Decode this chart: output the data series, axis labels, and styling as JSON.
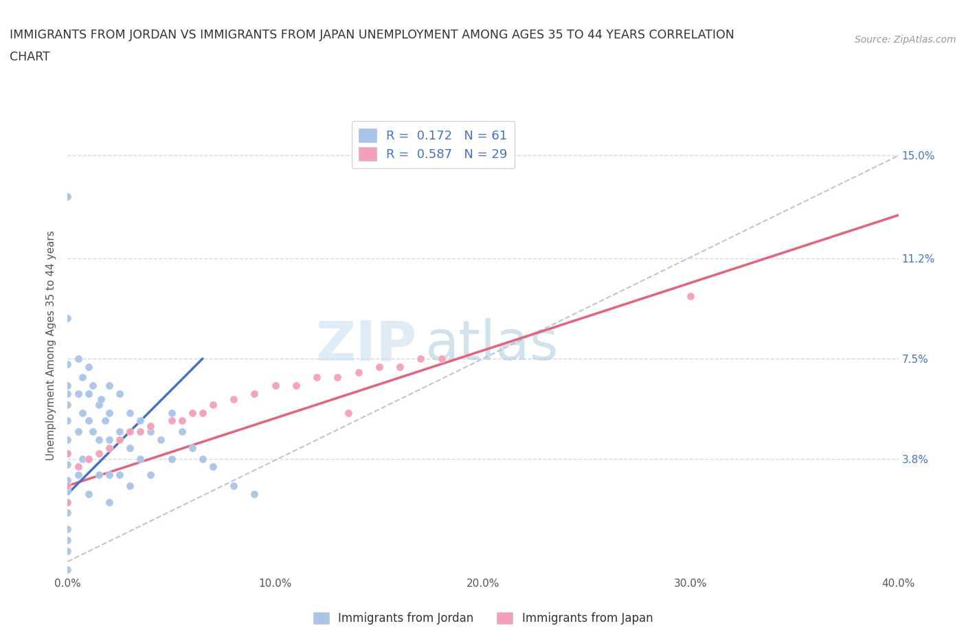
{
  "title_line1": "IMMIGRANTS FROM JORDAN VS IMMIGRANTS FROM JAPAN UNEMPLOYMENT AMONG AGES 35 TO 44 YEARS CORRELATION",
  "title_line2": "CHART",
  "source": "Source: ZipAtlas.com",
  "ylabel": "Unemployment Among Ages 35 to 44 years",
  "xlim": [
    0.0,
    0.4
  ],
  "ylim": [
    -0.005,
    0.165
  ],
  "xticks": [
    0.0,
    0.1,
    0.2,
    0.3,
    0.4
  ],
  "xticklabels": [
    "0.0%",
    "10.0%",
    "20.0%",
    "30.0%",
    "40.0%"
  ],
  "yticks": [
    0.0,
    0.038,
    0.075,
    0.112,
    0.15
  ],
  "yticklabels": [
    "",
    "3.8%",
    "7.5%",
    "11.2%",
    "15.0%"
  ],
  "jordan_color": "#a8c4e8",
  "japan_color": "#f5a0b8",
  "jordan_line_color": "#4472c4",
  "japan_line_color": "#e8607a",
  "grid_color": "#d0d8e8",
  "ref_line_color": "#b8c8d8",
  "R_jordan": 0.172,
  "N_jordan": 61,
  "R_japan": 0.587,
  "N_japan": 29,
  "watermark_zip": "ZIP",
  "watermark_atlas": "atlas",
  "jordan_x": [
    0.0,
    0.0,
    0.0,
    0.0,
    0.0,
    0.0,
    0.0,
    0.0,
    0.0,
    0.0,
    0.0,
    0.0,
    0.0,
    0.0,
    0.0,
    0.0,
    0.0,
    0.0,
    0.005,
    0.005,
    0.005,
    0.005,
    0.007,
    0.007,
    0.007,
    0.01,
    0.01,
    0.01,
    0.01,
    0.01,
    0.012,
    0.012,
    0.015,
    0.015,
    0.015,
    0.016,
    0.018,
    0.02,
    0.02,
    0.02,
    0.02,
    0.02,
    0.025,
    0.025,
    0.025,
    0.03,
    0.03,
    0.03,
    0.035,
    0.035,
    0.04,
    0.04,
    0.045,
    0.05,
    0.05,
    0.055,
    0.06,
    0.065,
    0.07,
    0.08,
    0.09
  ],
  "jordan_y": [
    0.135,
    0.09,
    0.073,
    0.065,
    0.062,
    0.058,
    0.052,
    0.045,
    0.04,
    0.036,
    0.03,
    0.026,
    0.022,
    0.018,
    0.012,
    0.008,
    0.004,
    -0.003,
    0.075,
    0.062,
    0.048,
    0.032,
    0.068,
    0.055,
    0.038,
    0.072,
    0.062,
    0.052,
    0.038,
    0.025,
    0.065,
    0.048,
    0.058,
    0.045,
    0.032,
    0.06,
    0.052,
    0.065,
    0.055,
    0.045,
    0.032,
    0.022,
    0.062,
    0.048,
    0.032,
    0.055,
    0.042,
    0.028,
    0.052,
    0.038,
    0.048,
    0.032,
    0.045,
    0.055,
    0.038,
    0.048,
    0.042,
    0.038,
    0.035,
    0.028,
    0.025
  ],
  "japan_x": [
    0.0,
    0.0,
    0.0,
    0.005,
    0.01,
    0.015,
    0.02,
    0.025,
    0.03,
    0.035,
    0.04,
    0.05,
    0.055,
    0.06,
    0.065,
    0.07,
    0.08,
    0.09,
    0.1,
    0.11,
    0.12,
    0.13,
    0.135,
    0.14,
    0.15,
    0.16,
    0.17,
    0.18,
    0.3
  ],
  "japan_y": [
    0.04,
    0.028,
    0.022,
    0.035,
    0.038,
    0.04,
    0.042,
    0.045,
    0.048,
    0.048,
    0.05,
    0.052,
    0.052,
    0.055,
    0.055,
    0.058,
    0.06,
    0.062,
    0.065,
    0.065,
    0.068,
    0.068,
    0.055,
    0.07,
    0.072,
    0.072,
    0.075,
    0.075,
    0.098
  ],
  "jordan_trend_x": [
    0.0,
    0.065
  ],
  "jordan_trend_y": [
    0.025,
    0.075
  ],
  "japan_trend_x": [
    0.0,
    0.4
  ],
  "japan_trend_y": [
    0.028,
    0.128
  ]
}
